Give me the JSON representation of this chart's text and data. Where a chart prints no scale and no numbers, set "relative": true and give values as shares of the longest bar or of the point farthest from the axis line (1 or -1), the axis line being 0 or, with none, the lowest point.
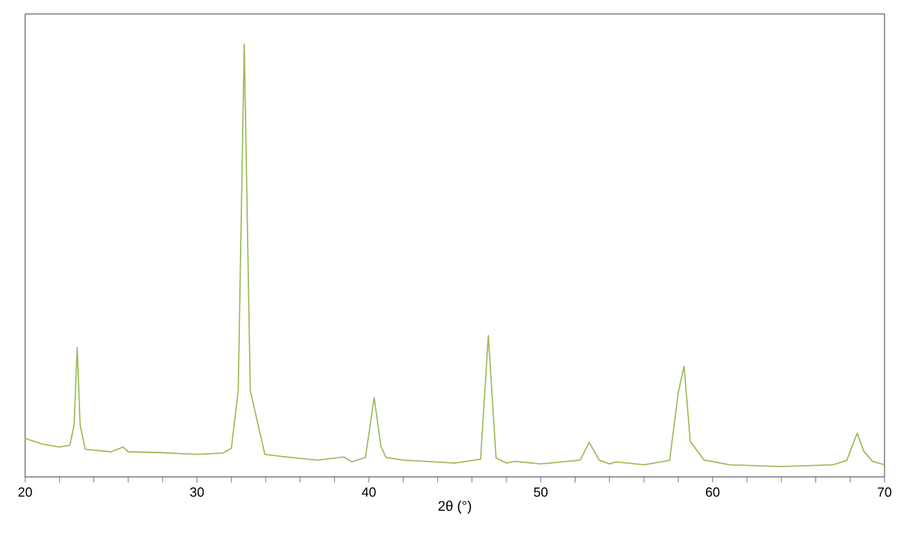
{
  "chart_data": {
    "type": "line",
    "relative": true,
    "xlabel": "2θ (°)",
    "xlim": [
      20,
      70
    ],
    "xticks": [
      20,
      {
        "value": 22,
        "label": null
      },
      {
        "value": 24,
        "label": null
      },
      {
        "value": 26,
        "label": null
      },
      {
        "value": 28,
        "label": null
      },
      30,
      {
        "value": 32,
        "label": null
      },
      {
        "value": 34,
        "label": null
      },
      {
        "value": 36,
        "label": null
      },
      {
        "value": 38,
        "label": null
      },
      40,
      {
        "value": 42,
        "label": null
      },
      {
        "value": 44,
        "label": null
      },
      {
        "value": 46,
        "label": null
      },
      {
        "value": 48,
        "label": null
      },
      50,
      {
        "value": 52,
        "label": null
      },
      {
        "value": 54,
        "label": null
      },
      {
        "value": 56,
        "label": null
      },
      {
        "value": 58,
        "label": null
      },
      60,
      {
        "value": 62,
        "label": null
      },
      {
        "value": 64,
        "label": null
      },
      {
        "value": 66,
        "label": null
      },
      {
        "value": 68,
        "label": null
      },
      70
    ],
    "tick_labels": "x",
    "grid": false,
    "marker": "none",
    "line_style": "solid",
    "series": [
      {
        "color": "#9bbb59",
        "x": [
          20.0,
          21.0,
          22.0,
          22.6,
          22.85,
          23.03,
          23.2,
          23.5,
          25.0,
          25.7,
          26.0,
          28.0,
          30.0,
          31.5,
          32.0,
          32.4,
          32.75,
          33.1,
          33.95,
          35.0,
          37.0,
          38.55,
          39.0,
          39.8,
          40.31,
          40.7,
          41.0,
          42.0,
          45.0,
          46.5,
          46.95,
          47.4,
          48.0,
          48.5,
          50.0,
          52.3,
          52.82,
          53.4,
          54.0,
          54.39,
          56.0,
          57.5,
          58.0,
          58.34,
          58.7,
          59.5,
          61.0,
          64.0,
          67.0,
          67.8,
          68.41,
          68.8,
          69.3,
          70.0
        ],
        "values": [
          0.089,
          0.076,
          0.069,
          0.073,
          0.12,
          0.299,
          0.12,
          0.064,
          0.058,
          0.069,
          0.058,
          0.056,
          0.052,
          0.055,
          0.066,
          0.2,
          1.0,
          0.2,
          0.052,
          0.047,
          0.039,
          0.046,
          0.035,
          0.045,
          0.183,
          0.071,
          0.045,
          0.039,
          0.032,
          0.041,
          0.327,
          0.044,
          0.032,
          0.036,
          0.03,
          0.039,
          0.08,
          0.039,
          0.03,
          0.035,
          0.028,
          0.038,
          0.195,
          0.256,
          0.082,
          0.039,
          0.028,
          0.024,
          0.028,
          0.038,
          0.101,
          0.059,
          0.036,
          0.028
        ]
      }
    ]
  }
}
